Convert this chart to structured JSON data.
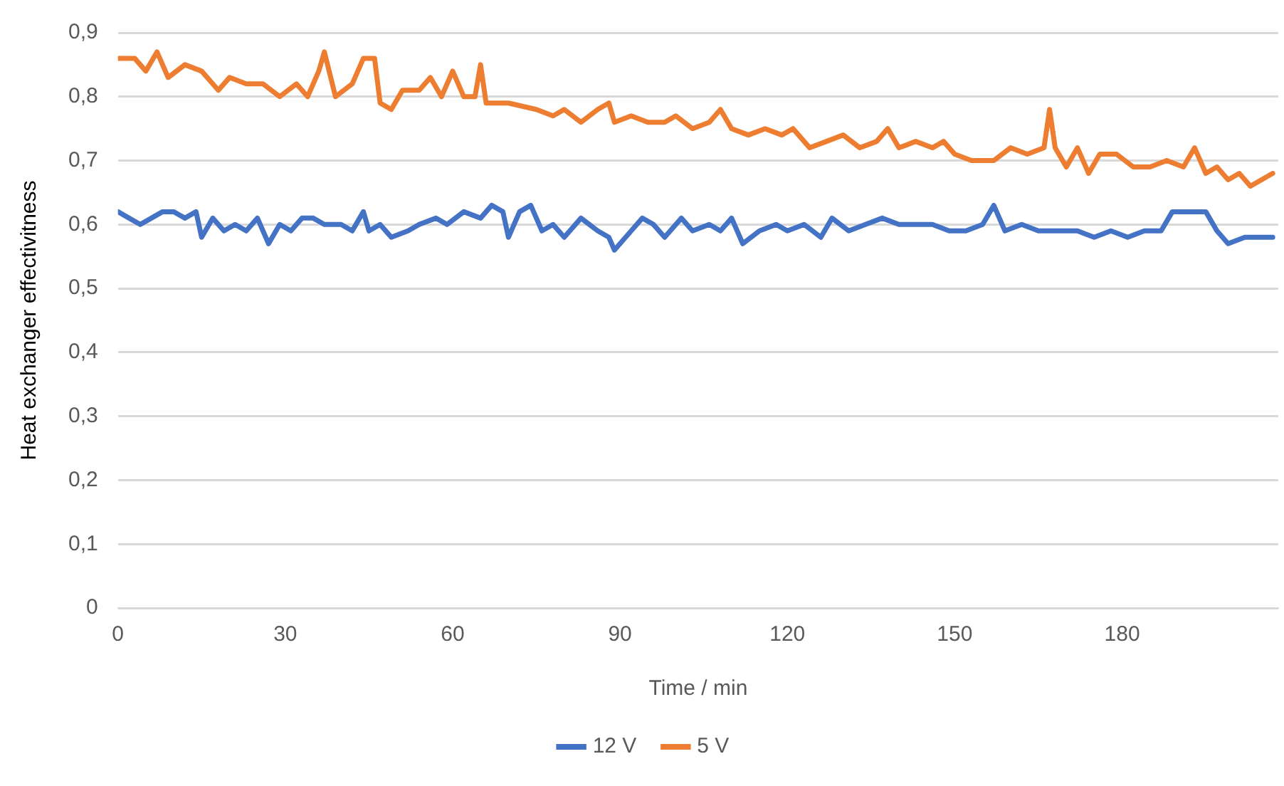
{
  "chart_data": {
    "type": "line",
    "xlabel": "Time / min",
    "ylabel": "Heat exchanger effectivitness",
    "xlim": [
      0,
      208
    ],
    "xticks": [
      0,
      30,
      60,
      90,
      120,
      150,
      180
    ],
    "ylim": [
      0,
      0.9
    ],
    "yticks": [
      {
        "value": 0,
        "label": "0"
      },
      {
        "value": 0.1,
        "label": "0,1"
      },
      {
        "value": 0.2,
        "label": "0,2"
      },
      {
        "value": 0.3,
        "label": "0,3"
      },
      {
        "value": 0.4,
        "label": "0,4"
      },
      {
        "value": 0.5,
        "label": "0,5"
      },
      {
        "value": 0.6,
        "label": "0,6"
      },
      {
        "value": 0.7,
        "label": "0,7"
      },
      {
        "value": 0.8,
        "label": "0,8"
      },
      {
        "value": 0.9,
        "label": "0,9"
      }
    ],
    "grid": "y",
    "legend": "bottom",
    "marker": "none",
    "line_style": "solid",
    "series": [
      {
        "name": "12 V",
        "color": "#4472c4",
        "x": [
          0,
          2,
          4,
          6,
          8,
          10,
          12,
          14,
          15,
          17,
          19,
          21,
          23,
          25,
          27,
          29,
          31,
          33,
          35,
          37,
          40,
          42,
          44,
          45,
          47,
          49,
          52,
          54,
          57,
          59,
          62,
          65,
          67,
          69,
          70,
          72,
          74,
          76,
          78,
          80,
          83,
          86,
          88,
          89,
          92,
          94,
          96,
          98,
          101,
          103,
          106,
          108,
          110,
          112,
          115,
          118,
          120,
          123,
          126,
          128,
          131,
          134,
          137,
          140,
          143,
          146,
          149,
          152,
          155,
          157,
          159,
          162,
          165,
          168,
          172,
          175,
          178,
          181,
          184,
          187,
          189,
          192,
          195,
          197,
          199,
          202,
          205,
          207
        ],
        "values": [
          0.62,
          0.61,
          0.6,
          0.61,
          0.62,
          0.62,
          0.61,
          0.62,
          0.58,
          0.61,
          0.59,
          0.6,
          0.59,
          0.61,
          0.57,
          0.6,
          0.59,
          0.61,
          0.61,
          0.6,
          0.6,
          0.59,
          0.62,
          0.59,
          0.6,
          0.58,
          0.59,
          0.6,
          0.61,
          0.6,
          0.62,
          0.61,
          0.63,
          0.62,
          0.58,
          0.62,
          0.63,
          0.59,
          0.6,
          0.58,
          0.61,
          0.59,
          0.58,
          0.56,
          0.59,
          0.61,
          0.6,
          0.58,
          0.61,
          0.59,
          0.6,
          0.59,
          0.61,
          0.57,
          0.59,
          0.6,
          0.59,
          0.6,
          0.58,
          0.61,
          0.59,
          0.6,
          0.61,
          0.6,
          0.6,
          0.6,
          0.59,
          0.59,
          0.6,
          0.63,
          0.59,
          0.6,
          0.59,
          0.59,
          0.59,
          0.58,
          0.59,
          0.58,
          0.59,
          0.59,
          0.62,
          0.62,
          0.62,
          0.59,
          0.57,
          0.58,
          0.58,
          0.58
        ]
      },
      {
        "name": "5 V",
        "color": "#ed7d31",
        "x": [
          0,
          3,
          5,
          7,
          9,
          12,
          15,
          18,
          20,
          23,
          26,
          29,
          32,
          34,
          36,
          37,
          39,
          42,
          44,
          46,
          47,
          49,
          51,
          54,
          56,
          58,
          60,
          62,
          64,
          65,
          66,
          70,
          75,
          78,
          80,
          83,
          86,
          88,
          89,
          92,
          95,
          98,
          100,
          103,
          106,
          108,
          110,
          113,
          116,
          119,
          121,
          124,
          127,
          130,
          133,
          136,
          138,
          140,
          143,
          146,
          148,
          150,
          153,
          157,
          160,
          163,
          166,
          167,
          168,
          170,
          172,
          174,
          176,
          179,
          182,
          185,
          188,
          191,
          193,
          195,
          197,
          199,
          201,
          203,
          205,
          207
        ],
        "values": [
          0.86,
          0.86,
          0.84,
          0.87,
          0.83,
          0.85,
          0.84,
          0.81,
          0.83,
          0.82,
          0.82,
          0.8,
          0.82,
          0.8,
          0.84,
          0.87,
          0.8,
          0.82,
          0.86,
          0.86,
          0.79,
          0.78,
          0.81,
          0.81,
          0.83,
          0.8,
          0.84,
          0.8,
          0.8,
          0.85,
          0.79,
          0.79,
          0.78,
          0.77,
          0.78,
          0.76,
          0.78,
          0.79,
          0.76,
          0.77,
          0.76,
          0.76,
          0.77,
          0.75,
          0.76,
          0.78,
          0.75,
          0.74,
          0.75,
          0.74,
          0.75,
          0.72,
          0.73,
          0.74,
          0.72,
          0.73,
          0.75,
          0.72,
          0.73,
          0.72,
          0.73,
          0.71,
          0.7,
          0.7,
          0.72,
          0.71,
          0.72,
          0.78,
          0.72,
          0.69,
          0.72,
          0.68,
          0.71,
          0.71,
          0.69,
          0.69,
          0.7,
          0.69,
          0.72,
          0.68,
          0.69,
          0.67,
          0.68,
          0.66,
          0.67,
          0.68
        ]
      }
    ]
  }
}
